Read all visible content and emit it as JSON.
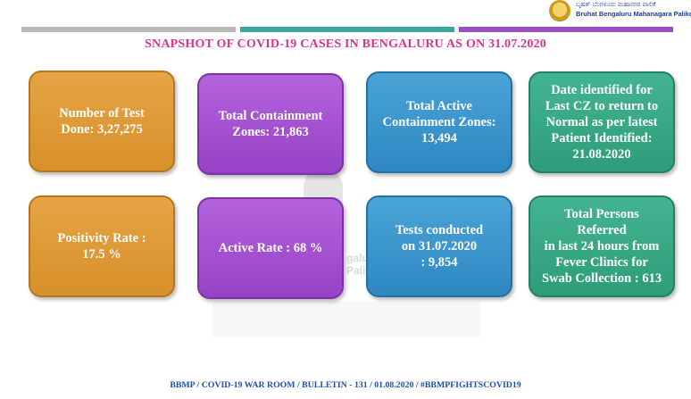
{
  "header": {
    "logo_kannada": "ಬೃಹತ್ ಬೆಂಗಳೂರು ಮಹಾನಗರ ಪಾಲಿಕೆ",
    "logo_english": "Bruhat Bengaluru Mahanagara Palike",
    "title": "SNAPSHOT OF COVID-19 CASES IN BENGALURU AS ON 31.07.2020"
  },
  "cards": [
    {
      "text": "Number of Test\nDone: 3,27,275",
      "color": "#dc9634"
    },
    {
      "text": "Total Containment\nZones: 21,863",
      "color": "#a552d2"
    },
    {
      "text": "Total Active\nContainment Zones:\n13,494",
      "color": "#3a95cc"
    },
    {
      "text": "Date identified for\nLast CZ to return to\nNormal as per latest\nPatient Identified:\n21.08.2020",
      "color": "#38a884"
    },
    {
      "text": "Positivity Rate :\n17.5 %",
      "color": "#dc9634"
    },
    {
      "text": "Active Rate : 68 %",
      "color": "#a552d2"
    },
    {
      "text": "Tests conducted\non 31.07.2020\n: 9,854",
      "color": "#3a95cc"
    },
    {
      "text": "Total Persons Referred\nin last 24 hours from\nFever Clinics for\nSwab Collection : 613",
      "color": "#38a884"
    }
  ],
  "watermark_text": "galuru\nPalike",
  "footer": "BBMP / COVID-19 WAR ROOM / BULLETIN - 131 / 01.08.2020 / #BBMPFIGHTSCOVID19"
}
